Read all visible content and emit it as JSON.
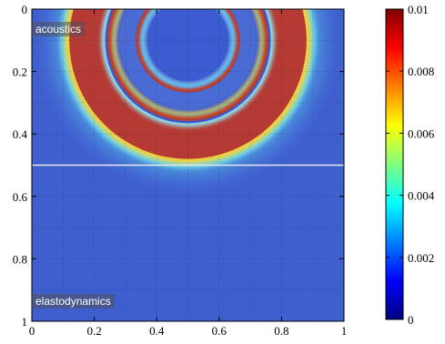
{
  "chart_data": {
    "type": "heatmap",
    "title": "",
    "xlabel": "",
    "ylabel": "",
    "xlim": [
      0,
      1
    ],
    "ylim": [
      0,
      1
    ],
    "y_axis_direction": "top-to-bottom",
    "x_ticks": [
      "0",
      "0.2",
      "0.4",
      "0.6",
      "0.8",
      "1"
    ],
    "y_ticks": [
      "0",
      "0.2",
      "0.4",
      "0.6",
      "0.8",
      "1"
    ],
    "interface_y": 0.5,
    "grid": true,
    "region_labels": {
      "top": "acoustics",
      "bottom": "elastodynamics"
    },
    "colorbar": {
      "colormap": "jet",
      "range": [
        0,
        0.01
      ],
      "ticks": [
        "0",
        "0.002",
        "0.004",
        "0.006",
        "0.008",
        "0.01"
      ]
    },
    "wavefronts": [
      {
        "center": [
          0.5,
          0.1
        ],
        "radius": 0.38,
        "description": "outer saturated band"
      },
      {
        "center": [
          0.5,
          0.1
        ],
        "radius": 0.26,
        "description": "middle ring"
      },
      {
        "center": [
          0.5,
          0.1
        ],
        "radius": 0.16,
        "description": "inner ring"
      }
    ]
  }
}
